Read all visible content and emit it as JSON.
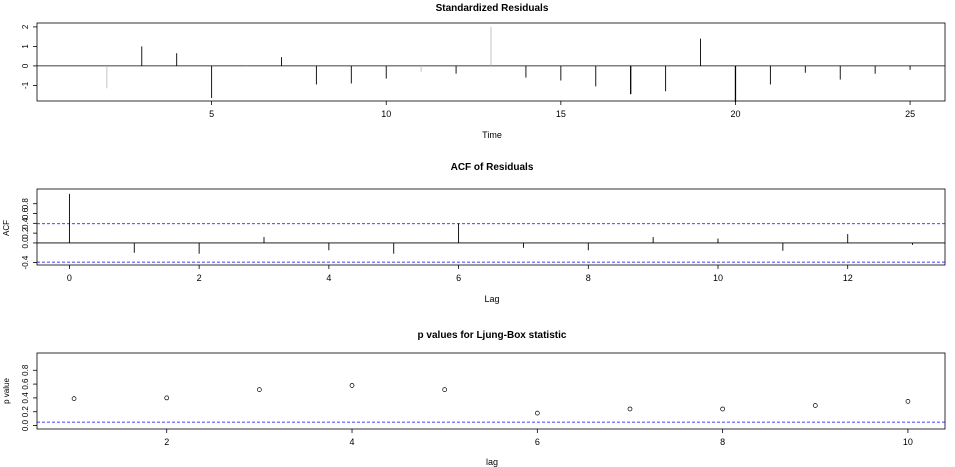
{
  "chart_data": [
    {
      "id": "residuals",
      "type": "bar",
      "title": "Standardized Residuals",
      "xlabel": "Time",
      "ylabel": "",
      "xlim": [
        0,
        26
      ],
      "ylim": [
        -1.8,
        2.2
      ],
      "xticks": [
        5,
        10,
        15,
        20,
        25
      ],
      "yticks": [
        -1,
        0,
        1,
        2
      ],
      "x": [
        1,
        2,
        3,
        4,
        5,
        6,
        7,
        8,
        9,
        10,
        11,
        12,
        13,
        14,
        15,
        16,
        17,
        18,
        19,
        20,
        21,
        22,
        23,
        24,
        25
      ],
      "values": [
        0.0,
        -1.15,
        1.0,
        0.65,
        -1.65,
        -0.05,
        0.45,
        -0.95,
        -0.9,
        -0.65,
        -0.3,
        -0.4,
        2.0,
        -0.6,
        -0.75,
        -1.05,
        -1.45,
        -1.3,
        1.4,
        -1.85,
        -0.95,
        -0.35,
        -0.7,
        -0.4,
        -0.2
      ]
    },
    {
      "id": "acf",
      "type": "bar",
      "title": "ACF of Residuals",
      "xlabel": "Lag",
      "ylabel": "ACF",
      "xlim": [
        -0.5,
        13.5
      ],
      "ylim": [
        -0.45,
        1.1
      ],
      "xticks": [
        0,
        2,
        4,
        6,
        8,
        10,
        12
      ],
      "yticks": [
        -0.4,
        0.0,
        0.2,
        0.4,
        0.6,
        0.8
      ],
      "ytick_labels": [
        "-0.4",
        "0.0",
        "0.2",
        "0.4",
        "0.6",
        "0.8"
      ],
      "x": [
        0,
        1,
        2,
        3,
        4,
        5,
        6,
        7,
        8,
        9,
        10,
        11,
        12,
        13
      ],
      "values": [
        1.0,
        -0.2,
        -0.22,
        0.12,
        -0.15,
        -0.22,
        0.4,
        -0.1,
        -0.15,
        0.12,
        0.09,
        -0.16,
        0.18,
        -0.04
      ],
      "confidence_bounds": [
        0.392,
        -0.392
      ],
      "bound_color": "#0000ff"
    },
    {
      "id": "ljung",
      "type": "scatter",
      "title": "p values for Ljung-Box statistic",
      "xlabel": "lag",
      "ylabel": "p value",
      "xlim": [
        0.6,
        10.4
      ],
      "ylim": [
        -0.05,
        1.05
      ],
      "xticks": [
        2,
        4,
        6,
        8,
        10
      ],
      "yticks": [
        0.0,
        0.2,
        0.4,
        0.6,
        0.8
      ],
      "ytick_labels": [
        "0.0",
        "0.2",
        "0.4",
        "0.6",
        "0.8"
      ],
      "x": [
        1,
        2,
        3,
        4,
        5,
        6,
        7,
        8,
        9,
        10
      ],
      "values": [
        0.39,
        0.4,
        0.52,
        0.58,
        0.52,
        0.18,
        0.24,
        0.24,
        0.29,
        0.35
      ],
      "reference_line": 0.05,
      "reference_color": "#0000ff"
    }
  ]
}
